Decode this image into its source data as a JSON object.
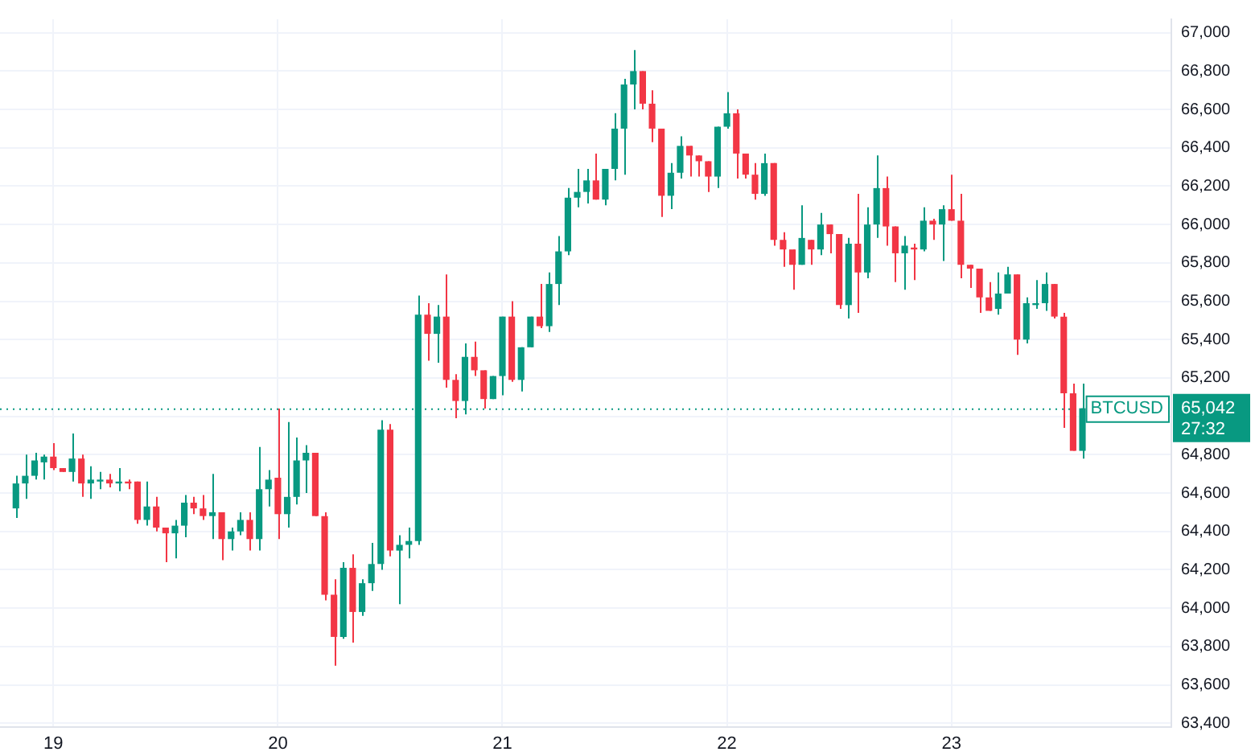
{
  "chart_data": {
    "type": "candlestick",
    "x": [
      18.8333,
      18.875,
      18.9167,
      18.9583,
      19,
      19.0417,
      19.0833,
      19.125,
      19.1667,
      19.2083,
      19.25,
      19.2917,
      19.3333,
      19.375,
      19.4167,
      19.4583,
      19.5,
      19.5417,
      19.5833,
      19.625,
      19.6667,
      19.7083,
      19.75,
      19.7917,
      19.8333,
      19.875,
      19.9167,
      19.9583,
      20,
      20.0417,
      20.0833,
      20.125,
      20.1667,
      20.2083,
      20.25,
      20.2917,
      20.3333,
      20.375,
      20.4167,
      20.4583,
      20.5,
      20.5417,
      20.5833,
      20.625,
      20.6667,
      20.7083,
      20.75,
      20.7917,
      20.8333,
      20.875,
      20.9167,
      20.9583,
      21,
      21.0417,
      21.0833,
      21.125,
      21.1667,
      21.2083,
      21.25,
      21.2917,
      21.3333,
      21.375,
      21.4167,
      21.4583,
      21.5,
      21.5417,
      21.5833,
      21.625,
      21.6667,
      21.7083,
      21.75,
      21.7917,
      21.8333,
      21.875,
      21.9167,
      21.9583,
      22,
      22.0417,
      22.0833,
      22.125,
      22.1667,
      22.2083,
      22.25,
      22.2917,
      22.3333,
      22.375,
      22.4167,
      22.4583,
      22.5,
      22.5417,
      22.5833,
      22.625,
      22.6667,
      22.7083,
      22.75,
      22.7917,
      22.8333,
      22.875,
      22.9167,
      22.9583,
      23,
      23.0417,
      23.0833,
      23.125,
      23.1667,
      23.2083,
      23.25,
      23.2917,
      23.3333,
      23.375,
      23.4167,
      23.4583,
      23.5,
      23.5417,
      23.5833
    ],
    "ohlc": [
      [
        64520,
        64690,
        64470,
        64650
      ],
      [
        64650,
        64800,
        64570,
        64690
      ],
      [
        64690,
        64810,
        64670,
        64770
      ],
      [
        64760,
        64800,
        64670,
        64790
      ],
      [
        64790,
        64860,
        64720,
        64730
      ],
      [
        64730,
        64730,
        64710,
        64710
      ],
      [
        64710,
        64910,
        64660,
        64780
      ],
      [
        64780,
        64800,
        64580,
        64650
      ],
      [
        64650,
        64740,
        64570,
        64670
      ],
      [
        64660,
        64710,
        64620,
        64670
      ],
      [
        64670,
        64700,
        64630,
        64650
      ],
      [
        64650,
        64730,
        64610,
        64660
      ],
      [
        64660,
        64670,
        64620,
        64650
      ],
      [
        64660,
        64660,
        64440,
        64460
      ],
      [
        64460,
        64660,
        64430,
        64530
      ],
      [
        64530,
        64580,
        64400,
        64420
      ],
      [
        64420,
        64420,
        64240,
        64390
      ],
      [
        64390,
        64460,
        64260,
        64430
      ],
      [
        64430,
        64590,
        64370,
        64550
      ],
      [
        64550,
        64580,
        64490,
        64520
      ],
      [
        64520,
        64590,
        64460,
        64480
      ],
      [
        64480,
        64700,
        64360,
        64500
      ],
      [
        64500,
        64500,
        64250,
        64360
      ],
      [
        64360,
        64420,
        64300,
        64400
      ],
      [
        64400,
        64500,
        64380,
        64460
      ],
      [
        64460,
        64500,
        64300,
        64360
      ],
      [
        64360,
        64840,
        64300,
        64620
      ],
      [
        64620,
        64720,
        64530,
        64670
      ],
      [
        64680,
        65040,
        64360,
        64490
      ],
      [
        64490,
        64970,
        64420,
        64580
      ],
      [
        64580,
        64890,
        64540,
        64770
      ],
      [
        64770,
        64850,
        64600,
        64810
      ],
      [
        64810,
        64810,
        64480,
        64480
      ],
      [
        64480,
        64500,
        64040,
        64070
      ],
      [
        64070,
        64150,
        63700,
        63850
      ],
      [
        63850,
        64240,
        63840,
        64210
      ],
      [
        64210,
        64280,
        63820,
        63980
      ],
      [
        63980,
        64150,
        63960,
        64130
      ],
      [
        64130,
        64340,
        64090,
        64230
      ],
      [
        64230,
        64980,
        64200,
        64930
      ],
      [
        64930,
        64960,
        64270,
        64300
      ],
      [
        64300,
        64380,
        64020,
        64330
      ],
      [
        64330,
        64420,
        64260,
        64350
      ],
      [
        64350,
        65630,
        64330,
        65530
      ],
      [
        65530,
        65590,
        65290,
        65430
      ],
      [
        65430,
        65580,
        65280,
        65520
      ],
      [
        65520,
        65740,
        65150,
        65190
      ],
      [
        65190,
        65220,
        64990,
        65080
      ],
      [
        65080,
        65380,
        65010,
        65310
      ],
      [
        65310,
        65390,
        65210,
        65240
      ],
      [
        65240,
        65240,
        65040,
        65090
      ],
      [
        65090,
        65210,
        65090,
        65210
      ],
      [
        65210,
        65520,
        65110,
        65520
      ],
      [
        65520,
        65600,
        65180,
        65190
      ],
      [
        65190,
        65360,
        65130,
        65360
      ],
      [
        65360,
        65520,
        65360,
        65520
      ],
      [
        65520,
        65690,
        65460,
        65470
      ],
      [
        65470,
        65750,
        65440,
        65690
      ],
      [
        65690,
        65940,
        65580,
        65860
      ],
      [
        65860,
        66190,
        65840,
        66140
      ],
      [
        66140,
        66290,
        66090,
        66170
      ],
      [
        66170,
        66290,
        66110,
        66230
      ],
      [
        66230,
        66370,
        66130,
        66130
      ],
      [
        66130,
        66290,
        66100,
        66290
      ],
      [
        66290,
        66580,
        66230,
        66500
      ],
      [
        66500,
        66760,
        66260,
        66730
      ],
      [
        66730,
        66910,
        66600,
        66800
      ],
      [
        66800,
        66800,
        66600,
        66630
      ],
      [
        66630,
        66700,
        66430,
        66500
      ],
      [
        66500,
        66500,
        66040,
        66150
      ],
      [
        66150,
        66320,
        66080,
        66270
      ],
      [
        66270,
        66460,
        66240,
        66410
      ],
      [
        66410,
        66410,
        66250,
        66360
      ],
      [
        66360,
        66360,
        66250,
        66330
      ],
      [
        66330,
        66330,
        66170,
        66250
      ],
      [
        66250,
        66510,
        66190,
        66510
      ],
      [
        66510,
        66690,
        66500,
        66580
      ],
      [
        66580,
        66600,
        66240,
        66370
      ],
      [
        66370,
        66370,
        66240,
        66260
      ],
      [
        66260,
        66320,
        66130,
        66160
      ],
      [
        66160,
        66370,
        66150,
        66320
      ],
      [
        66320,
        66320,
        65890,
        65920
      ],
      [
        65920,
        65960,
        65780,
        65870
      ],
      [
        65870,
        65870,
        65660,
        65790
      ],
      [
        65790,
        66100,
        65790,
        65930
      ],
      [
        65920,
        65920,
        65790,
        65870
      ],
      [
        65870,
        66060,
        65840,
        66000
      ],
      [
        66000,
        66000,
        65850,
        65950
      ],
      [
        65950,
        65950,
        65560,
        65580
      ],
      [
        65580,
        65930,
        65510,
        65900
      ],
      [
        65900,
        66160,
        65540,
        65750
      ],
      [
        65750,
        66090,
        65720,
        66000
      ],
      [
        66000,
        66360,
        65930,
        66190
      ],
      [
        66190,
        66250,
        65890,
        65990
      ],
      [
        65990,
        65990,
        65700,
        65850
      ],
      [
        65850,
        65940,
        65660,
        65890
      ],
      [
        65880,
        65900,
        65710,
        65870
      ],
      [
        65870,
        66090,
        65860,
        66020
      ],
      [
        66020,
        66030,
        65920,
        66000
      ],
      [
        66000,
        66100,
        65810,
        66080
      ],
      [
        66080,
        66260,
        66020,
        66020
      ],
      [
        66020,
        66160,
        65720,
        65790
      ],
      [
        65790,
        65790,
        65670,
        65770
      ],
      [
        65770,
        65770,
        65540,
        65620
      ],
      [
        65620,
        65700,
        65550,
        65550
      ],
      [
        65560,
        65750,
        65530,
        65640
      ],
      [
        65640,
        65780,
        65640,
        65740
      ],
      [
        65740,
        65740,
        65320,
        65400
      ],
      [
        65400,
        65620,
        65380,
        65590
      ],
      [
        65580,
        65710,
        65560,
        65590
      ],
      [
        65590,
        65750,
        65550,
        65690
      ],
      [
        65690,
        65690,
        65510,
        65520
      ],
      [
        65520,
        65540,
        64940,
        65120
      ],
      [
        65120,
        65170,
        64820,
        64820
      ],
      [
        64820,
        65170,
        64780,
        65042
      ]
    ],
    "colors": [
      "#089981",
      "#089981",
      "#089981",
      "#089981",
      "#f23645",
      "#f23645",
      "#089981",
      "#f23645",
      "#089981",
      "#089981",
      "#f23645",
      "#089981",
      "#f23645",
      "#f23645",
      "#089981",
      "#f23645",
      "#f23645",
      "#089981",
      "#089981",
      "#f23645",
      "#f23645",
      "#089981",
      "#f23645",
      "#089981",
      "#089981",
      "#f23645",
      "#089981",
      "#089981",
      "#f23645",
      "#089981",
      "#089981",
      "#089981",
      "#f23645",
      "#f23645",
      "#f23645",
      "#089981",
      "#f23645",
      "#089981",
      "#089981",
      "#089981",
      "#f23645",
      "#089981",
      "#089981",
      "#089981",
      "#f23645",
      "#089981",
      "#f23645",
      "#f23645",
      "#089981",
      "#f23645",
      "#f23645",
      "#089981",
      "#089981",
      "#f23645",
      "#089981",
      "#089981",
      "#f23645",
      "#089981",
      "#089981",
      "#089981",
      "#089981",
      "#089981",
      "#f23645",
      "#089981",
      "#089981",
      "#089981",
      "#089981",
      "#f23645",
      "#f23645",
      "#f23645",
      "#089981",
      "#089981",
      "#f23645",
      "#f23645",
      "#f23645",
      "#089981",
      "#089981",
      "#f23645",
      "#f23645",
      "#f23645",
      "#089981",
      "#f23645",
      "#f23645",
      "#f23645",
      "#089981",
      "#f23645",
      "#089981",
      "#f23645",
      "#f23645",
      "#089981",
      "#f23645",
      "#089981",
      "#089981",
      "#f23645",
      "#f23645",
      "#089981",
      "#f23645",
      "#089981",
      "#f23645",
      "#089981",
      "#f23645",
      "#f23645",
      "#f23645",
      "#f23645",
      "#f23645",
      "#089981",
      "#089981",
      "#f23645",
      "#089981",
      "#089981",
      "#089981",
      "#f23645",
      "#f23645",
      "#f23645",
      "#089981"
    ],
    "xlim": [
      18.7625,
      23.9792
    ],
    "xticks": [
      19,
      20,
      21,
      22,
      23
    ],
    "ylim": [
      63380,
      67070
    ],
    "yticks": [
      {
        "value": 63400,
        "label": "63,400"
      },
      {
        "value": 63600,
        "label": "63,600"
      },
      {
        "value": 63800,
        "label": "63,800"
      },
      {
        "value": 64000,
        "label": "64,000"
      },
      {
        "value": 64200,
        "label": "64,200"
      },
      {
        "value": 64400,
        "label": "64,400"
      },
      {
        "value": 64600,
        "label": "64,600"
      },
      {
        "value": 64800,
        "label": "64,800"
      },
      {
        "value": 65000,
        "label": null
      },
      {
        "value": 65200,
        "label": "65,200"
      },
      {
        "value": 65400,
        "label": "65,400"
      },
      {
        "value": 65600,
        "label": "65,600"
      },
      {
        "value": 65800,
        "label": "65,800"
      },
      {
        "value": 66000,
        "label": "66,000"
      },
      {
        "value": 66200,
        "label": "66,200"
      },
      {
        "value": 66400,
        "label": "66,400"
      },
      {
        "value": 66600,
        "label": "66,600"
      },
      {
        "value": 66800,
        "label": "66,800"
      },
      {
        "value": 67000,
        "label": "67,000"
      }
    ],
    "grid": true,
    "ref_lines": [
      {
        "axis": "y",
        "value": 65042,
        "label": "BTCUSD",
        "color": "#089981",
        "line_style": "dotted"
      }
    ],
    "annotations": [
      "65,042",
      "27:32"
    ]
  }
}
